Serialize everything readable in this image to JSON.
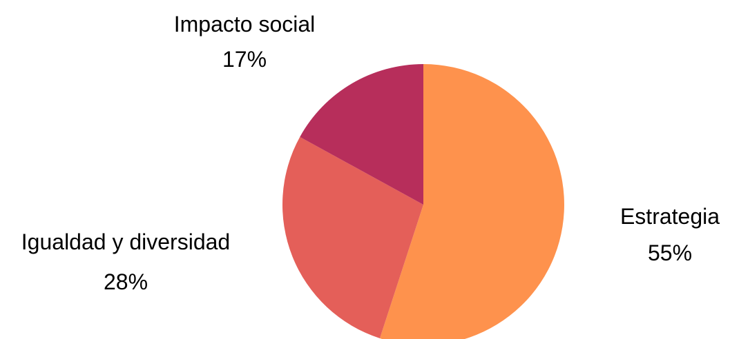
{
  "chart_data": {
    "type": "pie",
    "title": "",
    "start_angle_deg": 0,
    "direction": "clockwise",
    "slices": [
      {
        "label": "Estrategia",
        "value": 55,
        "value_label": "55%",
        "color": "#fe924d"
      },
      {
        "label": "Igualdad y diversidad",
        "value": 28,
        "value_label": "28%",
        "color": "#e45f59"
      },
      {
        "label": "Impacto social",
        "value": 17,
        "value_label": "17%",
        "color": "#b72e5b"
      }
    ],
    "legend": "none",
    "labels": "outside"
  }
}
